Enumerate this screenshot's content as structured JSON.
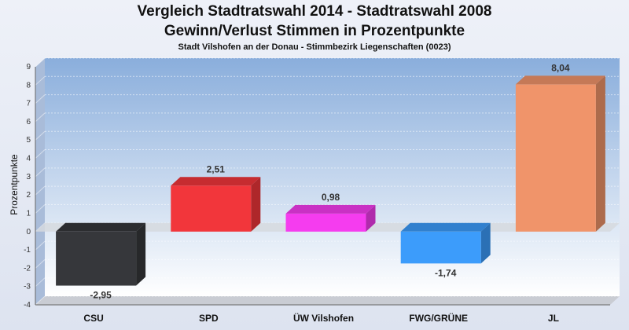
{
  "chart_data": {
    "type": "bar",
    "title": "Vergleich Stadtratswahl 2014 - Stadtratswahl 2008",
    "subtitle_line": "Gewinn/Verlust Stimmen in Prozentpunkte",
    "subtitle": "Stadt Vilshofen an der Donau - Stimmbezirk Liegenschaften (0023)",
    "ylabel": "Prozentpunkte",
    "xlabel": "",
    "categories": [
      "CSU",
      "SPD",
      "ÜW Vilshofen",
      "FWG/GRÜNE",
      "JL"
    ],
    "values": [
      -2.95,
      2.51,
      0.98,
      -1.74,
      8.04
    ],
    "value_labels": [
      "-2,95",
      "2,51",
      "0,98",
      "-1,74",
      "8,04"
    ],
    "colors": [
      "#36373b",
      "#f2363b",
      "#f53cef",
      "#3c9cfb",
      "#f0946a"
    ],
    "ylim": [
      -4,
      9
    ],
    "yticks": [
      -4,
      -3,
      -2,
      -1,
      0,
      1,
      2,
      3,
      4,
      5,
      6,
      7,
      8,
      9
    ],
    "grid": true,
    "legend": "none"
  }
}
